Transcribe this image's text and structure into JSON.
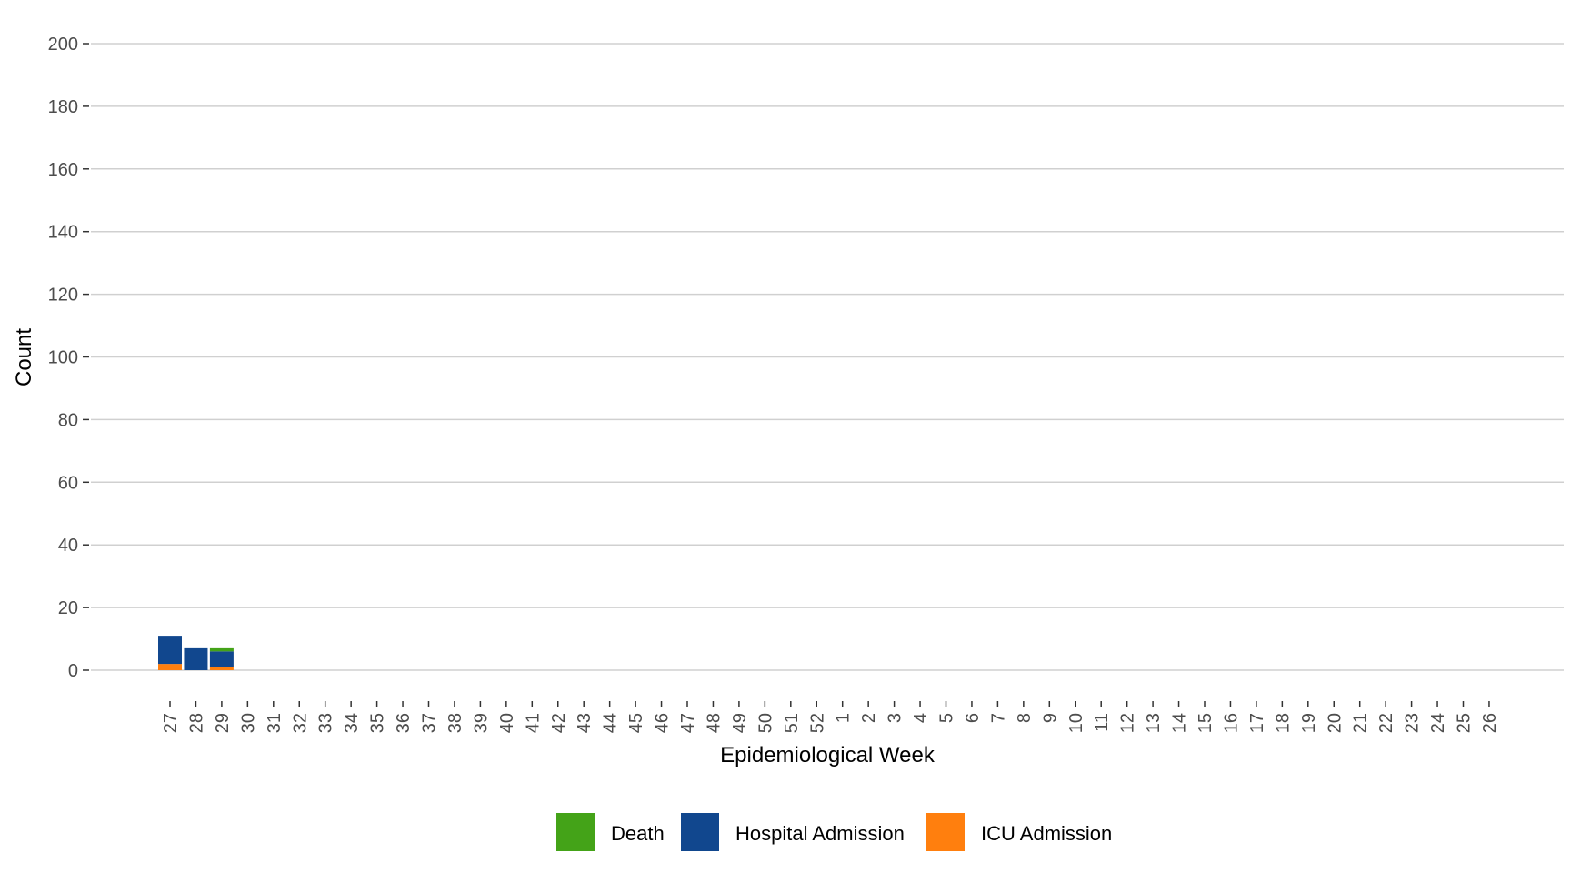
{
  "chart_data": {
    "type": "bar",
    "stacked": true,
    "title": "",
    "xlabel": "Epidemiological Week",
    "ylabel": "Count",
    "ylim": [
      0,
      200
    ],
    "yticks": [
      0,
      20,
      40,
      60,
      80,
      100,
      120,
      140,
      160,
      180,
      200
    ],
    "grid": "horizontal",
    "legend": {
      "placement": "bottom",
      "order": [
        "Death",
        "Hospital Admission",
        "ICU Admission"
      ]
    },
    "categories": [
      "27",
      "28",
      "29",
      "30",
      "31",
      "32",
      "33",
      "34",
      "35",
      "36",
      "37",
      "38",
      "39",
      "40",
      "41",
      "42",
      "43",
      "44",
      "45",
      "46",
      "47",
      "48",
      "49",
      "50",
      "51",
      "52",
      "1",
      "2",
      "3",
      "4",
      "5",
      "6",
      "7",
      "8",
      "9",
      "10",
      "11",
      "12",
      "13",
      "14",
      "15",
      "16",
      "17",
      "18",
      "19",
      "20",
      "21",
      "22",
      "23",
      "24",
      "25",
      "26"
    ],
    "series": [
      {
        "name": "ICU Admission",
        "color": "#FF7F0E",
        "values": [
          2,
          0,
          1,
          0,
          0,
          0,
          0,
          0,
          0,
          0,
          0,
          0,
          0,
          0,
          0,
          0,
          0,
          0,
          0,
          0,
          0,
          0,
          0,
          0,
          0,
          0,
          0,
          0,
          0,
          0,
          0,
          0,
          0,
          0,
          0,
          0,
          0,
          0,
          0,
          0,
          0,
          0,
          0,
          0,
          0,
          0,
          0,
          0,
          0,
          0,
          0,
          0
        ]
      },
      {
        "name": "Hospital Admission",
        "color": "#11478E",
        "values": [
          9,
          7,
          5,
          0,
          0,
          0,
          0,
          0,
          0,
          0,
          0,
          0,
          0,
          0,
          0,
          0,
          0,
          0,
          0,
          0,
          0,
          0,
          0,
          0,
          0,
          0,
          0,
          0,
          0,
          0,
          0,
          0,
          0,
          0,
          0,
          0,
          0,
          0,
          0,
          0,
          0,
          0,
          0,
          0,
          0,
          0,
          0,
          0,
          0,
          0,
          0,
          0
        ]
      },
      {
        "name": "Death",
        "color": "#44A318",
        "values": [
          0,
          0,
          1,
          0,
          0,
          0,
          0,
          0,
          0,
          0,
          0,
          0,
          0,
          0,
          0,
          0,
          0,
          0,
          0,
          0,
          0,
          0,
          0,
          0,
          0,
          0,
          0,
          0,
          0,
          0,
          0,
          0,
          0,
          0,
          0,
          0,
          0,
          0,
          0,
          0,
          0,
          0,
          0,
          0,
          0,
          0,
          0,
          0,
          0,
          0,
          0,
          0
        ]
      }
    ]
  }
}
